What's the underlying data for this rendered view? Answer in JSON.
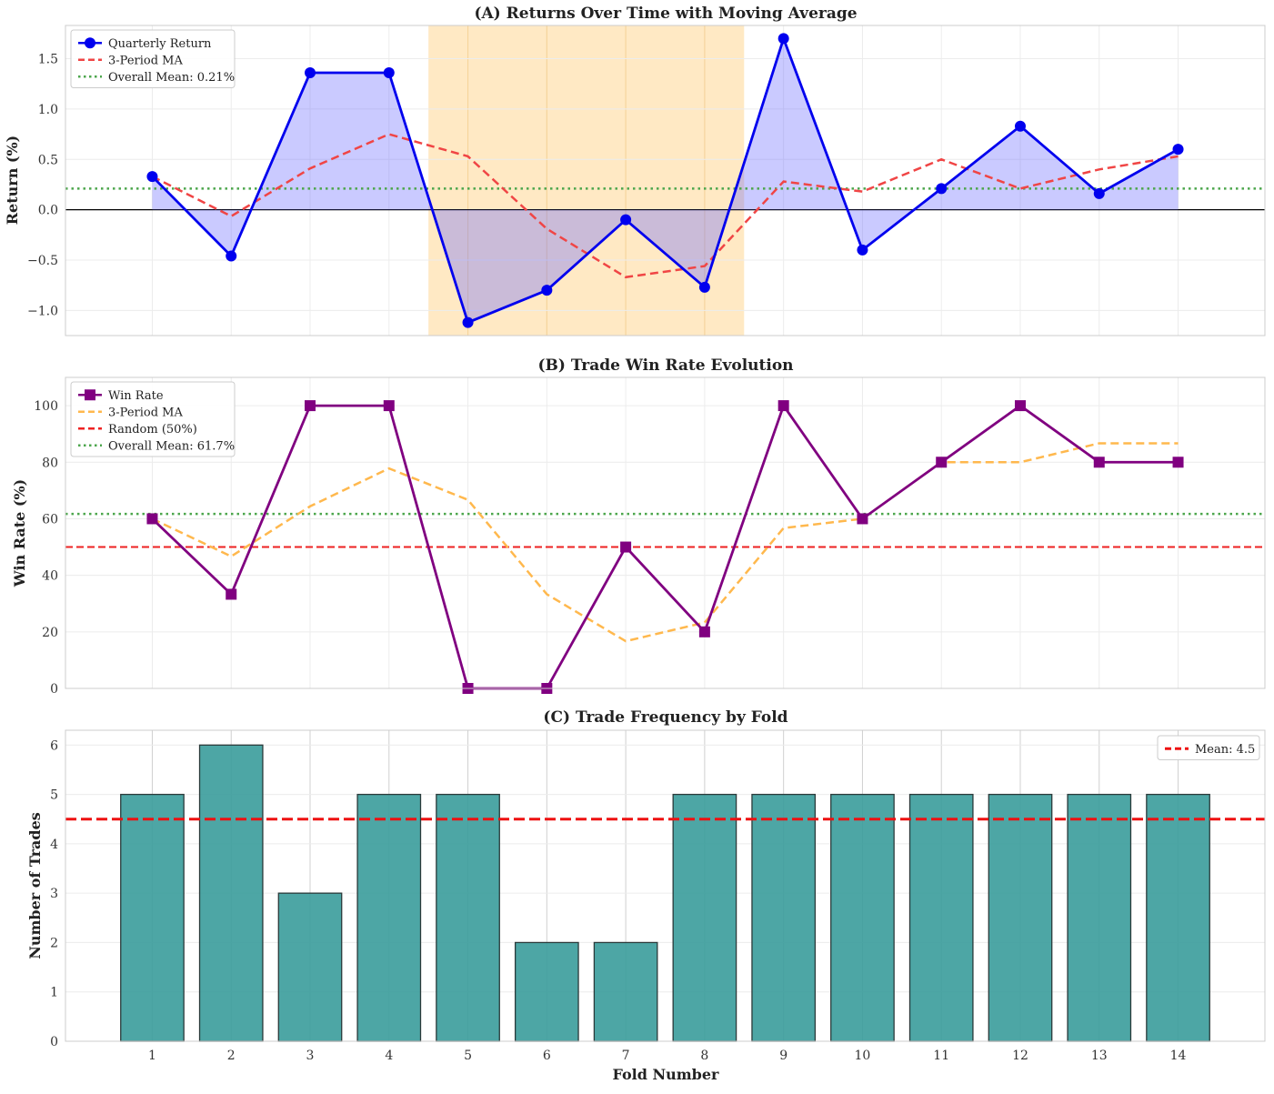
{
  "chart_data": [
    {
      "type": "line",
      "title": "(A) Returns Over Time with Moving Average",
      "ylabel": "Return (%)",
      "xlabel": "",
      "x": [
        1,
        2,
        3,
        4,
        5,
        6,
        7,
        8,
        9,
        10,
        11,
        12,
        13,
        14
      ],
      "xlim": [
        -0.1,
        15.1
      ],
      "ylim": [
        -1.25,
        1.83
      ],
      "yticks": [
        -1.0,
        -0.5,
        0.0,
        0.5,
        1.0,
        1.5
      ],
      "ytick_labels": [
        "−1.0",
        "−0.5",
        "0.0",
        "0.5",
        "1.0",
        "1.5"
      ],
      "shaded_x_range": [
        4.5,
        8.5
      ],
      "shade_color": "#ffe9c4",
      "zero_line": 0,
      "series": [
        {
          "name": "Quarterly Return",
          "color": "#0000ee",
          "style": "line-marker-circle",
          "values": [
            0.33,
            -0.46,
            1.36,
            1.36,
            -1.12,
            -0.8,
            -0.1,
            -0.77,
            1.7,
            -0.4,
            0.21,
            0.83,
            0.16,
            0.6
          ]
        },
        {
          "name": "3-Period MA",
          "color": "#f04545",
          "style": "dashed",
          "values": [
            0.33,
            -0.065,
            0.41,
            0.75,
            0.53,
            -0.19,
            -0.67,
            -0.56,
            0.28,
            0.18,
            0.5,
            0.21,
            0.4,
            0.53
          ]
        },
        {
          "name": "Overall Mean: 0.21%",
          "color": "#4ca64c",
          "style": "dotted-hline",
          "value": 0.21
        }
      ]
    },
    {
      "type": "line",
      "title": "(B) Trade Win Rate Evolution",
      "ylabel": "Win Rate (%)",
      "xlabel": "",
      "x": [
        1,
        2,
        3,
        4,
        5,
        6,
        7,
        8,
        9,
        10,
        11,
        12,
        13,
        14
      ],
      "xlim": [
        -0.1,
        15.1
      ],
      "ylim": [
        0,
        110
      ],
      "yticks": [
        0,
        20,
        40,
        60,
        80,
        100
      ],
      "ytick_labels": [
        "0",
        "20",
        "40",
        "60",
        "80",
        "100"
      ],
      "series": [
        {
          "name": "Win Rate",
          "color": "#800080",
          "style": "line-marker-square",
          "values": [
            60,
            33.3,
            100,
            100,
            0,
            0,
            50,
            20,
            100,
            60,
            80,
            100,
            80,
            80
          ]
        },
        {
          "name": "3-Period MA",
          "color": "#ffb84d",
          "style": "dashed",
          "values": [
            60,
            46.7,
            64.4,
            77.8,
            66.7,
            33.3,
            16.7,
            23.3,
            56.7,
            60,
            80,
            80,
            86.7,
            86.7
          ]
        },
        {
          "name": "Random (50%)",
          "color": "#ee2222",
          "style": "dashed-hline",
          "value": 50
        },
        {
          "name": "Overall Mean: 61.7%",
          "color": "#4ca64c",
          "style": "dotted-hline",
          "value": 61.7
        }
      ]
    },
    {
      "type": "bar",
      "title": "(C) Trade Frequency by Fold",
      "ylabel": "Number of Trades",
      "xlabel": "Fold Number",
      "categories": [
        "1",
        "2",
        "3",
        "4",
        "5",
        "6",
        "7",
        "8",
        "9",
        "10",
        "11",
        "12",
        "13",
        "14"
      ],
      "xlim": [
        -0.1,
        15.1
      ],
      "ylim": [
        0,
        6.3
      ],
      "yticks": [
        0,
        1,
        2,
        3,
        4,
        5,
        6
      ],
      "ytick_labels": [
        "0",
        "1",
        "2",
        "3",
        "4",
        "5",
        "6"
      ],
      "bar_color": "#3a9c9b",
      "series": [
        {
          "name": "",
          "values": [
            5,
            6,
            3,
            5,
            5,
            2,
            2,
            5,
            5,
            5,
            5,
            5,
            5,
            5
          ]
        },
        {
          "name": "Mean: 4.5",
          "color": "#ee1111",
          "style": "dashed-hline",
          "value": 4.5
        }
      ]
    }
  ]
}
